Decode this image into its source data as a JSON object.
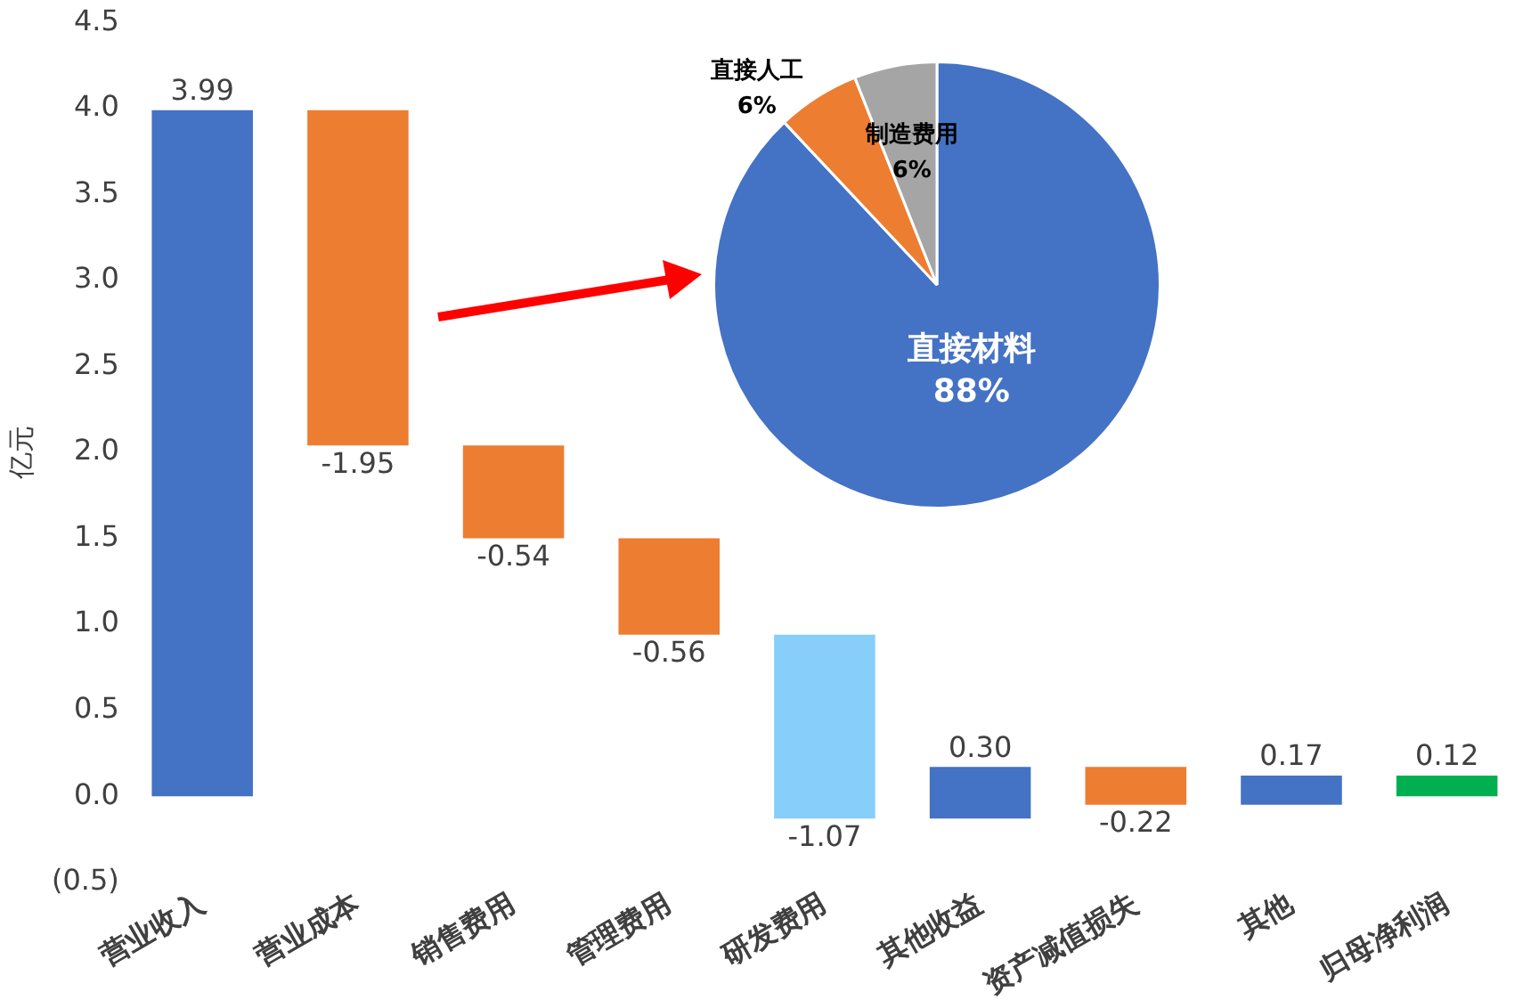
{
  "chart_data": [
    {
      "type": "bar",
      "ylabel": "亿元",
      "categories": [
        "营业收入",
        "营业成本",
        "销售费用",
        "管理费用",
        "研发费用",
        "其他收益",
        "资产减值损失",
        "其他",
        "归母净利润"
      ],
      "values": [
        3.99,
        -1.95,
        -0.54,
        -0.56,
        -1.07,
        0.3,
        -0.22,
        0.17,
        0.12
      ],
      "base": [
        0,
        3.99,
        2.04,
        1.5,
        0.94,
        -0.13,
        0.17,
        -0.05,
        0
      ],
      "colors": [
        "#4472c4",
        "#ed7d31",
        "#ed7d31",
        "#ed7d31",
        "#87cefa",
        "#4472c4",
        "#ed7d31",
        "#4472c4",
        "#00b050"
      ],
      "value_labels": [
        "3.99",
        "-1.95",
        "-0.54",
        "-0.56",
        "-1.07",
        "0.30",
        "-0.22",
        "0.17",
        "0.12"
      ],
      "ylim": [
        -0.5,
        4.5
      ],
      "yticks": [
        {
          "value": -0.5,
          "label": "(0.5)"
        },
        {
          "value": 0,
          "label": "0.0"
        },
        {
          "value": 0.5,
          "label": "0.5"
        },
        {
          "value": 1,
          "label": "1.0"
        },
        {
          "value": 1.5,
          "label": "1.5"
        },
        {
          "value": 2,
          "label": "2.0"
        },
        {
          "value": 2.5,
          "label": "2.5"
        },
        {
          "value": 3,
          "label": "3.0"
        },
        {
          "value": 3.5,
          "label": "3.5"
        },
        {
          "value": 4,
          "label": "4.0"
        },
        {
          "value": 4.5,
          "label": "4.5"
        }
      ],
      "grid": false,
      "legend": false
    },
    {
      "type": "pie",
      "categories": [
        "直接材料",
        "直接人工",
        "制造费用"
      ],
      "values": [
        88,
        6,
        6
      ],
      "colors": [
        "#4472c4",
        "#ed7d31",
        "#a5a5a5"
      ],
      "value_labels": [
        "88%",
        "6%",
        "6%"
      ],
      "legend": false
    }
  ]
}
